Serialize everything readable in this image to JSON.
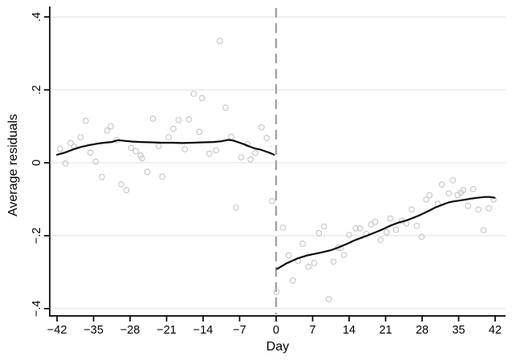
{
  "figure": {
    "xlabel": "Day",
    "ylabel": "Average residuals"
  },
  "chart_data": {
    "type": "scatter",
    "title": "",
    "xlabel": "Day",
    "ylabel": "Average residuals",
    "xlim": [
      -43.4,
      44.0
    ],
    "ylim": [
      -0.42,
      0.42
    ],
    "grid": "horizontal",
    "legend": "none",
    "x_ticks": [
      {
        "value": -42,
        "label": "−42"
      },
      {
        "value": -35,
        "label": "−35"
      },
      {
        "value": -28,
        "label": "−28"
      },
      {
        "value": -21,
        "label": "−21"
      },
      {
        "value": -14,
        "label": "−14"
      },
      {
        "value": -7,
        "label": "−7"
      },
      {
        "value": 0,
        "label": "0"
      },
      {
        "value": 7,
        "label": "7"
      },
      {
        "value": 14,
        "label": "14"
      },
      {
        "value": 21,
        "label": "21"
      },
      {
        "value": 28,
        "label": "28"
      },
      {
        "value": 35,
        "label": "35"
      },
      {
        "value": 42,
        "label": "42"
      }
    ],
    "y_ticks": [
      {
        "value": -0.4,
        "label": "−.4"
      },
      {
        "value": -0.2,
        "label": "−.2"
      },
      {
        "value": 0,
        "label": "0"
      },
      {
        "value": 0.2,
        "label": ".2"
      },
      {
        "value": 0.4,
        "label": ".4"
      }
    ],
    "reference_line": {
      "x": 0,
      "style": "dashed",
      "color": "#9e9e9e"
    },
    "colors": {
      "grid": "#e7e4f0",
      "axis": "#000000",
      "marker": "#c4c4c4",
      "fit_line": "#0a0a0a",
      "reference": "#9e9e9e"
    },
    "series": [
      {
        "name": "pre-period average residuals (scatter)",
        "type": "scatter",
        "marker": "hollow-circle",
        "color": "#c4c4c4",
        "points": [
          [
            -41.4,
            0.038
          ],
          [
            -40.4,
            -0.002
          ],
          [
            -39.4,
            0.054
          ],
          [
            -38.7,
            0.044
          ],
          [
            -37.5,
            0.07
          ],
          [
            -36.5,
            0.115
          ],
          [
            -35.6,
            0.028
          ],
          [
            -34.6,
            0.003
          ],
          [
            -33.4,
            -0.039
          ],
          [
            -32.4,
            0.088
          ],
          [
            -31.7,
            0.1
          ],
          [
            -30.5,
            0.062
          ],
          [
            -29.7,
            -0.059
          ],
          [
            -28.7,
            -0.075
          ],
          [
            -27.8,
            0.041
          ],
          [
            -26.9,
            0.032
          ],
          [
            -26.0,
            0.02
          ],
          [
            -25.7,
            0.012
          ],
          [
            -24.7,
            -0.025
          ],
          [
            -23.6,
            0.121
          ],
          [
            -22.5,
            0.046
          ],
          [
            -21.8,
            -0.038
          ],
          [
            -20.6,
            0.07
          ],
          [
            -19.7,
            0.093
          ],
          [
            -18.7,
            0.117
          ],
          [
            -17.5,
            0.037
          ],
          [
            -16.7,
            0.119
          ],
          [
            -15.8,
            0.189
          ],
          [
            -14.7,
            0.085
          ],
          [
            -14.2,
            0.177
          ],
          [
            -12.8,
            0.025
          ],
          [
            -11.5,
            0.034
          ],
          [
            -10.8,
            0.334
          ],
          [
            -9.7,
            0.151
          ],
          [
            -8.6,
            0.072
          ],
          [
            -7.7,
            -0.123
          ],
          [
            -6.7,
            0.015
          ],
          [
            -5.5,
            0.051
          ],
          [
            -4.9,
            0.009
          ],
          [
            -4.0,
            0.027
          ],
          [
            -2.8,
            0.097
          ],
          [
            -1.8,
            0.068
          ],
          [
            -0.8,
            -0.105
          ]
        ]
      },
      {
        "name": "post-period average residuals (scatter)",
        "type": "scatter",
        "marker": "hollow-circle",
        "color": "#c4c4c4",
        "points": [
          [
            0.1,
            -0.354
          ],
          [
            1.3,
            -0.178
          ],
          [
            2.4,
            -0.254
          ],
          [
            3.2,
            -0.323
          ],
          [
            4.2,
            -0.269
          ],
          [
            5.1,
            -0.222
          ],
          [
            6.2,
            -0.285
          ],
          [
            7.3,
            -0.275
          ],
          [
            8.2,
            -0.193
          ],
          [
            9.2,
            -0.175
          ],
          [
            10.1,
            -0.374
          ],
          [
            11.0,
            -0.271
          ],
          [
            11.9,
            -0.233
          ],
          [
            12.4,
            -0.234
          ],
          [
            13.0,
            -0.253
          ],
          [
            14.0,
            -0.198
          ],
          [
            15.3,
            -0.18
          ],
          [
            16.1,
            -0.18
          ],
          [
            17.3,
            -0.195
          ],
          [
            18.2,
            -0.169
          ],
          [
            19.0,
            -0.162
          ],
          [
            20.0,
            -0.212
          ],
          [
            21.2,
            -0.191
          ],
          [
            21.9,
            -0.153
          ],
          [
            23.0,
            -0.184
          ],
          [
            24.1,
            -0.159
          ],
          [
            25.0,
            -0.166
          ],
          [
            26.0,
            -0.128
          ],
          [
            27.0,
            -0.173
          ],
          [
            27.9,
            -0.203
          ],
          [
            28.8,
            -0.101
          ],
          [
            29.4,
            -0.089
          ],
          [
            31.0,
            -0.113
          ],
          [
            31.8,
            -0.06
          ],
          [
            33.1,
            -0.084
          ],
          [
            33.9,
            -0.048
          ],
          [
            34.8,
            -0.088
          ],
          [
            35.4,
            -0.082
          ],
          [
            35.9,
            -0.075
          ],
          [
            36.8,
            -0.118
          ],
          [
            37.8,
            -0.072
          ],
          [
            38.8,
            -0.128
          ],
          [
            39.8,
            -0.185
          ],
          [
            40.8,
            -0.125
          ],
          [
            41.7,
            -0.101
          ]
        ]
      },
      {
        "name": "pre-period local polynomial fit",
        "type": "line",
        "color": "#0a0a0a",
        "width": 2.2,
        "points": [
          [
            -42,
            0.022
          ],
          [
            -40.5,
            0.028
          ],
          [
            -39,
            0.036
          ],
          [
            -37.5,
            0.043
          ],
          [
            -36,
            0.048
          ],
          [
            -34.5,
            0.052
          ],
          [
            -33,
            0.055
          ],
          [
            -31.5,
            0.057
          ],
          [
            -30.3,
            0.062
          ],
          [
            -29,
            0.06
          ],
          [
            -27.5,
            0.058
          ],
          [
            -26,
            0.057
          ],
          [
            -24,
            0.056
          ],
          [
            -22,
            0.055
          ],
          [
            -20,
            0.055
          ],
          [
            -18,
            0.054
          ],
          [
            -16,
            0.055
          ],
          [
            -14,
            0.056
          ],
          [
            -12,
            0.057
          ],
          [
            -10.5,
            0.059
          ],
          [
            -9.2,
            0.063
          ],
          [
            -8.2,
            0.061
          ],
          [
            -7,
            0.055
          ],
          [
            -6,
            0.05
          ],
          [
            -5,
            0.044
          ],
          [
            -4,
            0.039
          ],
          [
            -3,
            0.036
          ],
          [
            -2,
            0.031
          ],
          [
            -1,
            0.026
          ],
          [
            -0.4,
            0.022
          ]
        ]
      },
      {
        "name": "post-period local polynomial fit",
        "type": "line",
        "color": "#0a0a0a",
        "width": 2.2,
        "points": [
          [
            0.2,
            -0.291
          ],
          [
            2,
            -0.276
          ],
          [
            4,
            -0.263
          ],
          [
            6,
            -0.254
          ],
          [
            8,
            -0.248
          ],
          [
            9,
            -0.245
          ],
          [
            10.5,
            -0.24
          ],
          [
            12,
            -0.232
          ],
          [
            13.5,
            -0.223
          ],
          [
            15,
            -0.213
          ],
          [
            16.5,
            -0.205
          ],
          [
            17.4,
            -0.2
          ],
          [
            19,
            -0.191
          ],
          [
            20.5,
            -0.182
          ],
          [
            22,
            -0.172
          ],
          [
            23.5,
            -0.164
          ],
          [
            25,
            -0.158
          ],
          [
            26.5,
            -0.15
          ],
          [
            27.5,
            -0.144
          ],
          [
            28.5,
            -0.137
          ],
          [
            29.4,
            -0.131
          ],
          [
            30.5,
            -0.123
          ],
          [
            31.7,
            -0.116
          ],
          [
            33,
            -0.109
          ],
          [
            34,
            -0.106
          ],
          [
            35,
            -0.104
          ],
          [
            36.3,
            -0.101
          ],
          [
            37.5,
            -0.098
          ],
          [
            38.6,
            -0.096
          ],
          [
            40,
            -0.094
          ],
          [
            41,
            -0.094
          ],
          [
            41.9,
            -0.096
          ]
        ]
      }
    ]
  }
}
